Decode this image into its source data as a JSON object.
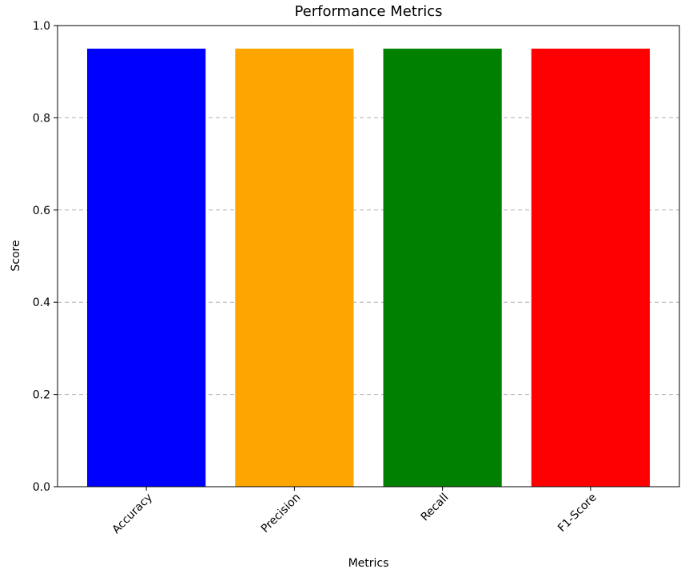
{
  "chart_data": {
    "type": "bar",
    "title": "Performance Metrics",
    "xlabel": "Metrics",
    "ylabel": "Score",
    "categories": [
      "Accuracy",
      "Precision",
      "Recall",
      "F1-Score"
    ],
    "values": [
      0.95,
      0.95,
      0.95,
      0.95
    ],
    "colors": [
      "#0000ff",
      "#ffa500",
      "#008000",
      "#ff0000"
    ],
    "ylim": [
      0,
      1.0
    ],
    "yticks": [
      "0.0",
      "0.2",
      "0.4",
      "0.6",
      "0.8",
      "1.0"
    ],
    "grid": "y-dashed",
    "xtick_rotation": 45
  }
}
